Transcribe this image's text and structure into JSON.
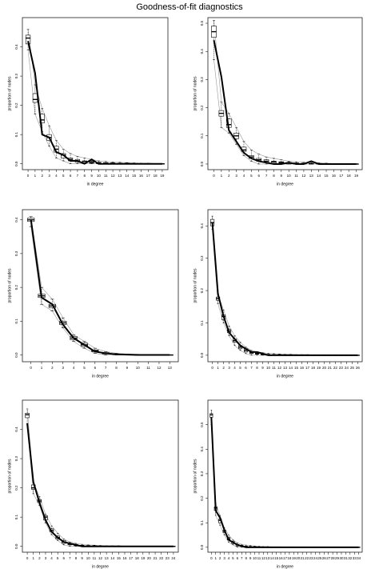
{
  "title": "Goodness-of-fit diagnostics",
  "chart_data": [
    {
      "type": "boxplot",
      "x_label": "in degree",
      "y_label": "proportion of nodes",
      "categories": [
        0,
        1,
        2,
        3,
        4,
        5,
        6,
        7,
        8,
        9,
        10,
        11,
        12,
        13,
        14,
        15,
        16,
        17,
        18,
        19
      ],
      "ylim": [
        -0.02,
        0.5
      ],
      "yticks": [
        {
          "value": 0,
          "label": "0.0"
        },
        0.1,
        0.2,
        0.3,
        0.4
      ],
      "observed": [
        0.42,
        0.31,
        0.1,
        0.09,
        0.04,
        0.03,
        0.01,
        0.01,
        0,
        0.015,
        0,
        0,
        0,
        0,
        0,
        0,
        0,
        0,
        0,
        0
      ],
      "boxes": [
        [
          0.39,
          0.41,
          0.43,
          0.44,
          0.46
        ],
        [
          0.17,
          0.21,
          0.22,
          0.24,
          0.27
        ],
        [
          0.11,
          0.14,
          0.15,
          0.17,
          0.19
        ],
        [
          0.06,
          0.08,
          0.09,
          0.1,
          0.13
        ],
        [
          0.02,
          0.04,
          0.05,
          0.06,
          0.08
        ],
        [
          0.01,
          0.02,
          0.03,
          0.035,
          0.05
        ],
        [
          0,
          0.01,
          0.015,
          0.02,
          0.035
        ],
        [
          0,
          0.005,
          0.01,
          0.015,
          0.025
        ],
        [
          0,
          0.003,
          0.008,
          0.01,
          0.02
        ],
        [
          0,
          0.002,
          0.005,
          0.008,
          0.015
        ],
        [
          0,
          0,
          0.003,
          0.005,
          0.01
        ],
        [
          0,
          0,
          0.002,
          0.004,
          0.008
        ],
        [
          0,
          0,
          0.002,
          0.003,
          0.006
        ],
        [
          0,
          0,
          0.001,
          0.002,
          0.005
        ],
        [
          0,
          0,
          0.001,
          0.002,
          0.004
        ],
        [
          0,
          0,
          0,
          0.001,
          0.003
        ],
        [
          0,
          0,
          0,
          0.001,
          0.002
        ],
        [
          0,
          0,
          0,
          0,
          0.002
        ],
        [
          0,
          0,
          0,
          0,
          0.001
        ],
        [
          0,
          0,
          0,
          0,
          0.001
        ]
      ]
    },
    {
      "type": "boxplot",
      "x_label": "in degree",
      "y_label": "proportion of nodes",
      "categories": [
        0,
        1,
        2,
        3,
        4,
        5,
        6,
        7,
        8,
        9,
        10,
        11,
        12,
        13,
        14,
        15,
        16,
        17,
        18,
        19
      ],
      "ylim": [
        -0.02,
        0.52
      ],
      "yticks": [
        {
          "value": 0,
          "label": "0.0"
        },
        0.1,
        0.2,
        0.3,
        0.4,
        0.5
      ],
      "observed": [
        0.44,
        0.31,
        0.12,
        0.08,
        0.04,
        0.02,
        0.01,
        0.005,
        0,
        0,
        0.005,
        0,
        0,
        0.01,
        0,
        0,
        0,
        0,
        0,
        0
      ],
      "boxes": [
        [
          0.37,
          0.45,
          0.47,
          0.49,
          0.51
        ],
        [
          0.13,
          0.17,
          0.18,
          0.19,
          0.22
        ],
        [
          0.11,
          0.13,
          0.14,
          0.16,
          0.18
        ],
        [
          0.07,
          0.09,
          0.1,
          0.11,
          0.13
        ],
        [
          0.03,
          0.045,
          0.05,
          0.06,
          0.08
        ],
        [
          0.01,
          0.02,
          0.025,
          0.03,
          0.05
        ],
        [
          0,
          0.01,
          0.015,
          0.02,
          0.035
        ],
        [
          0,
          0.005,
          0.01,
          0.015,
          0.025
        ],
        [
          0,
          0.003,
          0.008,
          0.01,
          0.02
        ],
        [
          0,
          0.002,
          0.005,
          0.008,
          0.015
        ],
        [
          0,
          0,
          0.003,
          0.005,
          0.01
        ],
        [
          0,
          0,
          0.002,
          0.004,
          0.008
        ],
        [
          0,
          0,
          0.002,
          0.003,
          0.006
        ],
        [
          0,
          0,
          0.001,
          0.002,
          0.005
        ],
        [
          0,
          0,
          0.001,
          0.002,
          0.004
        ],
        [
          0,
          0,
          0,
          0.001,
          0.003
        ],
        [
          0,
          0,
          0,
          0.001,
          0.002
        ],
        [
          0,
          0,
          0,
          0,
          0.002
        ],
        [
          0,
          0,
          0,
          0,
          0.001
        ],
        [
          0,
          0,
          0,
          0,
          0.001
        ]
      ]
    },
    {
      "type": "boxplot",
      "x_label": "in degree",
      "y_label": "proportion of nodes",
      "categories": [
        0,
        1,
        2,
        3,
        4,
        5,
        6,
        7,
        8,
        9,
        10,
        11,
        12,
        13
      ],
      "ylim": [
        -0.02,
        0.43
      ],
      "yticks": [
        {
          "value": 0,
          "label": "0.0"
        },
        0.1,
        0.2,
        0.3,
        0.4
      ],
      "observed": [
        0.4,
        0.17,
        0.15,
        0.09,
        0.05,
        0.03,
        0.01,
        0.005,
        0.002,
        0.001,
        0,
        0,
        0,
        0
      ],
      "boxes": [
        [
          0.38,
          0.395,
          0.4,
          0.405,
          0.41
        ],
        [
          0.15,
          0.17,
          0.175,
          0.18,
          0.2
        ],
        [
          0.13,
          0.14,
          0.145,
          0.15,
          0.165
        ],
        [
          0.08,
          0.09,
          0.095,
          0.1,
          0.11
        ],
        [
          0.04,
          0.045,
          0.05,
          0.055,
          0.06
        ],
        [
          0.02,
          0.025,
          0.03,
          0.035,
          0.04
        ],
        [
          0.005,
          0.01,
          0.012,
          0.015,
          0.02
        ],
        [
          0,
          0.003,
          0.005,
          0.007,
          0.01
        ],
        [
          0,
          0.001,
          0.002,
          0.003,
          0.005
        ],
        [
          0,
          0,
          0.001,
          0.002,
          0.003
        ],
        [
          0,
          0,
          0,
          0.001,
          0.002
        ],
        [
          0,
          0,
          0,
          0,
          0.001
        ],
        [
          0,
          0,
          0,
          0,
          0.001
        ],
        [
          0,
          0,
          0,
          0,
          0
        ]
      ]
    },
    {
      "type": "boxplot",
      "x_label": "in degree",
      "y_label": "proportion of nodes",
      "categories": [
        0,
        1,
        2,
        3,
        4,
        5,
        6,
        7,
        8,
        9,
        10,
        11,
        12,
        13,
        14,
        15,
        16,
        17,
        18,
        19,
        20,
        21,
        22,
        23,
        24,
        25,
        26
      ],
      "ylim": [
        -0.02,
        0.45
      ],
      "yticks": [
        {
          "value": 0,
          "label": "0.0"
        },
        0.1,
        0.2,
        0.3,
        0.4
      ],
      "observed": [
        0.41,
        0.19,
        0.12,
        0.07,
        0.05,
        0.03,
        0.02,
        0.01,
        0.01,
        0.005,
        0,
        0,
        0,
        0,
        0,
        0,
        0,
        0,
        0,
        0,
        0,
        0,
        0,
        0,
        0,
        0,
        0
      ],
      "boxes": [
        [
          0.39,
          0.4,
          0.41,
          0.42,
          0.43
        ],
        [
          0.16,
          0.17,
          0.175,
          0.18,
          0.19
        ],
        [
          0.1,
          0.11,
          0.12,
          0.125,
          0.14
        ],
        [
          0.06,
          0.07,
          0.075,
          0.08,
          0.09
        ],
        [
          0.03,
          0.04,
          0.045,
          0.05,
          0.06
        ],
        [
          0.015,
          0.02,
          0.025,
          0.03,
          0.04
        ],
        [
          0.005,
          0.01,
          0.015,
          0.02,
          0.025
        ],
        [
          0,
          0.005,
          0.008,
          0.01,
          0.015
        ],
        [
          0,
          0.003,
          0.005,
          0.007,
          0.01
        ],
        [
          0,
          0.001,
          0.003,
          0.005,
          0.008
        ],
        [
          0,
          0,
          0.002,
          0.003,
          0.006
        ],
        [
          0,
          0,
          0.001,
          0.002,
          0.005
        ],
        [
          0,
          0,
          0.001,
          0.002,
          0.004
        ],
        [
          0,
          0,
          0,
          0.001,
          0.003
        ],
        [
          0,
          0,
          0,
          0.001,
          0.003
        ],
        [
          0,
          0,
          0,
          0.001,
          0.002
        ],
        [
          0,
          0,
          0,
          0,
          0.002
        ],
        [
          0,
          0,
          0,
          0,
          0.002
        ],
        [
          0,
          0,
          0,
          0,
          0.001
        ],
        [
          0,
          0,
          0,
          0,
          0.001
        ],
        [
          0,
          0,
          0,
          0,
          0.001
        ],
        [
          0,
          0,
          0,
          0,
          0.001
        ],
        [
          0,
          0,
          0,
          0,
          0
        ],
        [
          0,
          0,
          0,
          0,
          0
        ],
        [
          0,
          0,
          0,
          0,
          0
        ],
        [
          0,
          0,
          0,
          0,
          0
        ],
        [
          0,
          0,
          0,
          0,
          0
        ]
      ]
    },
    {
      "type": "boxplot",
      "x_label": "in degree",
      "y_label": "proportion of nodes",
      "categories": [
        0,
        1,
        2,
        3,
        4,
        5,
        6,
        7,
        8,
        9,
        10,
        11,
        12,
        13,
        14,
        15,
        16,
        17,
        18,
        19,
        20,
        21,
        22,
        23,
        24
      ],
      "ylim": [
        -0.02,
        0.5
      ],
      "yticks": [
        {
          "value": 0,
          "label": "0.0"
        },
        0.1,
        0.2,
        0.3,
        0.4
      ],
      "observed": [
        0.42,
        0.22,
        0.15,
        0.09,
        0.05,
        0.03,
        0.015,
        0.01,
        0.005,
        0,
        0,
        0,
        0,
        0,
        0,
        0,
        0,
        0,
        0,
        0,
        0,
        0,
        0,
        0,
        0
      ],
      "boxes": [
        [
          0.42,
          0.44,
          0.45,
          0.455,
          0.47
        ],
        [
          0.18,
          0.195,
          0.2,
          0.21,
          0.22
        ],
        [
          0.14,
          0.15,
          0.155,
          0.16,
          0.17
        ],
        [
          0.08,
          0.09,
          0.1,
          0.105,
          0.11
        ],
        [
          0.04,
          0.05,
          0.055,
          0.06,
          0.07
        ],
        [
          0.02,
          0.025,
          0.03,
          0.035,
          0.045
        ],
        [
          0.005,
          0.01,
          0.015,
          0.02,
          0.025
        ],
        [
          0,
          0.005,
          0.008,
          0.01,
          0.015
        ],
        [
          0,
          0.002,
          0.004,
          0.006,
          0.01
        ],
        [
          0,
          0.001,
          0.002,
          0.004,
          0.007
        ],
        [
          0,
          0,
          0.001,
          0.003,
          0.005
        ],
        [
          0,
          0,
          0.001,
          0.002,
          0.004
        ],
        [
          0,
          0,
          0,
          0.001,
          0.003
        ],
        [
          0,
          0,
          0,
          0.001,
          0.002
        ],
        [
          0,
          0,
          0,
          0,
          0.002
        ],
        [
          0,
          0,
          0,
          0,
          0.002
        ],
        [
          0,
          0,
          0,
          0,
          0.001
        ],
        [
          0,
          0,
          0,
          0,
          0.001
        ],
        [
          0,
          0,
          0,
          0,
          0.001
        ],
        [
          0,
          0,
          0,
          0,
          0
        ],
        [
          0,
          0,
          0,
          0,
          0
        ],
        [
          0,
          0,
          0,
          0,
          0
        ],
        [
          0,
          0,
          0,
          0,
          0
        ],
        [
          0,
          0,
          0,
          0,
          0
        ],
        [
          0,
          0,
          0,
          0,
          0
        ]
      ]
    },
    {
      "type": "boxplot",
      "x_label": "in degree",
      "y_label": "proportion of nodes",
      "categories": [
        0,
        1,
        2,
        3,
        4,
        5,
        6,
        7,
        8,
        9,
        10,
        11,
        12,
        13,
        14,
        15,
        16,
        17,
        18,
        19,
        20,
        21,
        22,
        23,
        24,
        25,
        26,
        27,
        28,
        29,
        30,
        31,
        32,
        33,
        34
      ],
      "ylim": [
        -0.02,
        0.6
      ],
      "yticks": [
        {
          "value": 0,
          "label": "0.0"
        },
        0.1,
        0.2,
        0.3,
        0.4,
        0.5
      ],
      "observed": [
        0.53,
        0.15,
        0.12,
        0.07,
        0.03,
        0.02,
        0.01,
        0.005,
        0,
        0,
        0,
        0,
        0,
        0,
        0,
        0,
        0,
        0,
        0,
        0,
        0,
        0,
        0,
        0,
        0,
        0,
        0,
        0,
        0,
        0,
        0,
        0,
        0,
        0,
        0
      ],
      "boxes": [
        [
          0.5,
          0.53,
          0.54,
          0.545,
          0.56
        ],
        [
          0.13,
          0.15,
          0.16,
          0.165,
          0.18
        ],
        [
          0.09,
          0.1,
          0.11,
          0.115,
          0.13
        ],
        [
          0.05,
          0.06,
          0.065,
          0.07,
          0.08
        ],
        [
          0.02,
          0.03,
          0.035,
          0.04,
          0.05
        ],
        [
          0.01,
          0.015,
          0.02,
          0.025,
          0.03
        ],
        [
          0,
          0.005,
          0.01,
          0.012,
          0.018
        ],
        [
          0,
          0.003,
          0.005,
          0.008,
          0.012
        ],
        [
          0,
          0.002,
          0.003,
          0.005,
          0.009
        ],
        [
          0,
          0.001,
          0.002,
          0.004,
          0.007
        ],
        [
          0,
          0,
          0.001,
          0.003,
          0.005
        ],
        [
          0,
          0,
          0.001,
          0.002,
          0.004
        ],
        [
          0,
          0,
          0,
          0.001,
          0.003
        ],
        [
          0,
          0,
          0,
          0.001,
          0.003
        ],
        [
          0,
          0,
          0,
          0.001,
          0.002
        ],
        [
          0,
          0,
          0,
          0,
          0.002
        ],
        [
          0,
          0,
          0,
          0,
          0.002
        ],
        [
          0,
          0,
          0,
          0,
          0.001
        ],
        [
          0,
          0,
          0,
          0,
          0.001
        ],
        [
          0,
          0,
          0,
          0,
          0.001
        ],
        [
          0,
          0,
          0,
          0,
          0.001
        ],
        [
          0,
          0,
          0,
          0,
          0
        ],
        [
          0,
          0,
          0,
          0,
          0
        ],
        [
          0,
          0,
          0,
          0,
          0
        ],
        [
          0,
          0,
          0,
          0,
          0
        ],
        [
          0,
          0,
          0,
          0,
          0
        ],
        [
          0,
          0,
          0,
          0,
          0
        ],
        [
          0,
          0,
          0,
          0,
          0
        ],
        [
          0,
          0,
          0,
          0,
          0
        ],
        [
          0,
          0,
          0,
          0,
          0
        ],
        [
          0,
          0,
          0,
          0,
          0
        ],
        [
          0,
          0,
          0,
          0,
          0
        ],
        [
          0,
          0,
          0,
          0,
          0
        ],
        [
          0,
          0,
          0,
          0,
          0
        ],
        [
          0,
          0,
          0,
          0,
          0
        ]
      ]
    }
  ]
}
